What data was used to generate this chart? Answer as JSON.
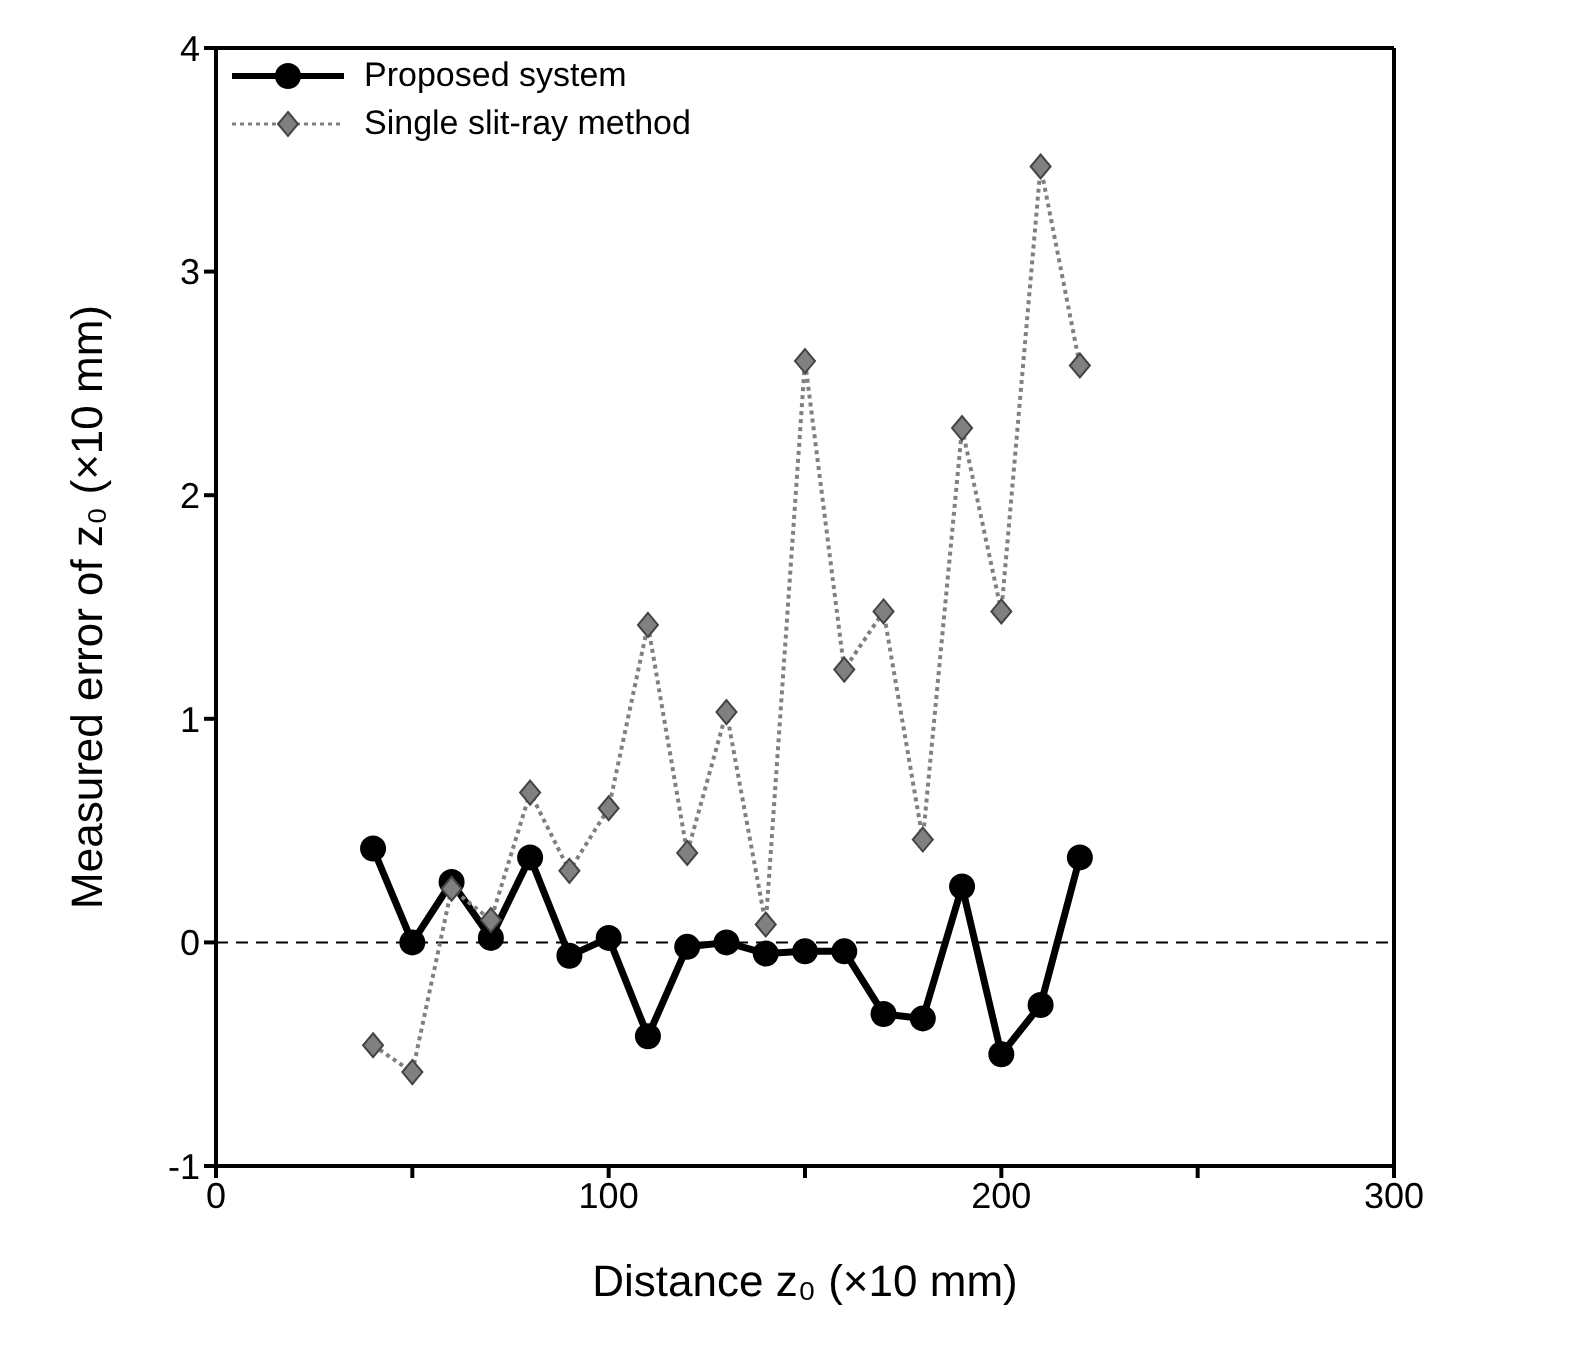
{
  "chart_data": {
    "type": "line",
    "xlabel": "Distance z₀ (×10 mm)",
    "ylabel": "Measured error of z₀ (×10 mm)",
    "x": [
      40,
      50,
      60,
      70,
      80,
      90,
      100,
      110,
      120,
      130,
      140,
      150,
      160,
      170,
      180,
      190,
      200,
      210,
      220
    ],
    "series": [
      {
        "name": "Proposed system",
        "color": "#000000",
        "marker": "circle",
        "line_style": "solid",
        "values": [
          0.42,
          0,
          0.27,
          0.02,
          0.38,
          -0.06,
          0.02,
          -0.42,
          -0.02,
          0,
          -0.05,
          -0.04,
          -0.04,
          -0.32,
          -0.34,
          0.25,
          -0.5,
          -0.28,
          0.38
        ]
      },
      {
        "name": "Single slit-ray method",
        "color": "#808080",
        "marker": "diamond",
        "line_style": "dotted",
        "values": [
          -0.46,
          -0.58,
          0.24,
          0.1,
          0.67,
          0.32,
          0.6,
          1.42,
          0.4,
          1.03,
          0.08,
          2.6,
          1.22,
          1.48,
          0.46,
          2.3,
          1.48,
          3.47,
          2.58
        ]
      }
    ],
    "xlim": [
      0,
      300
    ],
    "xticks": [
      0,
      {
        "value": 50,
        "label": null
      },
      100,
      {
        "value": 150,
        "label": null
      },
      200,
      {
        "value": 250,
        "label": null
      },
      300
    ],
    "ylim": [
      -1,
      4
    ],
    "yticks": [
      -1,
      0,
      1,
      2,
      3,
      4
    ],
    "ref_lines": [
      {
        "axis": "y",
        "value": 0,
        "line_style": "dashed",
        "color": "#000000"
      }
    ],
    "grid": false,
    "legend": "top left"
  }
}
